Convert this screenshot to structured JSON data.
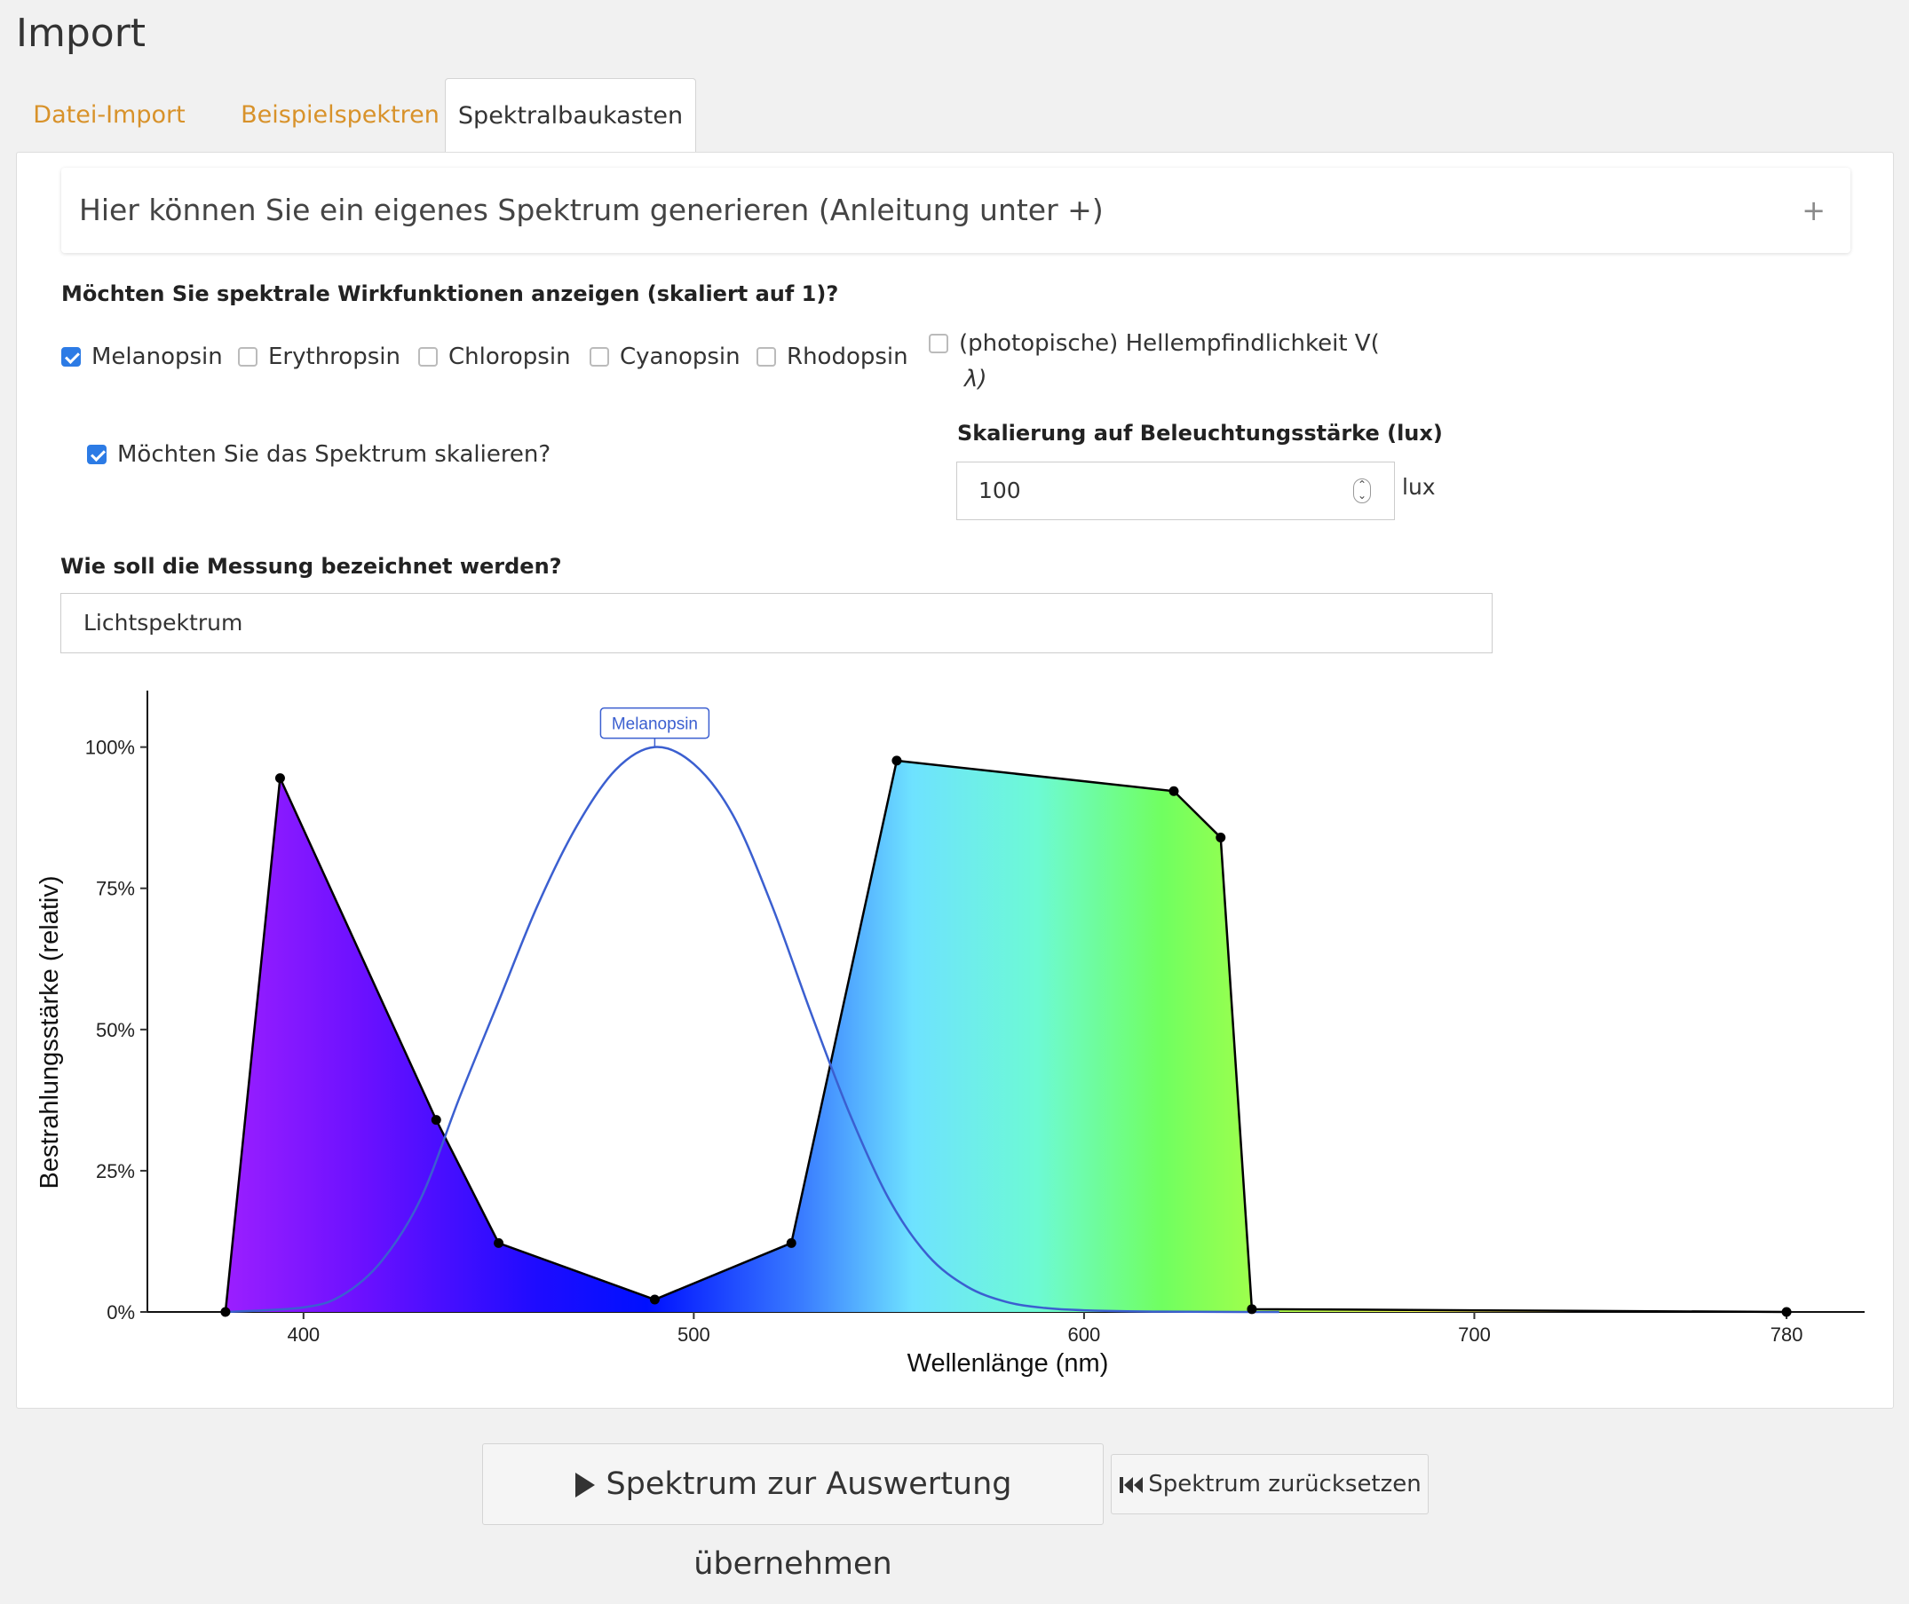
{
  "page": {
    "title": "Import"
  },
  "tabs": [
    {
      "label": "Datei-Import",
      "active": false
    },
    {
      "label": "Beispielspektren",
      "active": false
    },
    {
      "label": "Spektralbaukasten",
      "active": true
    }
  ],
  "collapse": {
    "title": "Hier können Sie ein eigenes Spektrum generieren (Anleitung unter +)",
    "icon": "plus-icon"
  },
  "wirk": {
    "question": "Möchten Sie spektrale Wirkfunktionen anzeigen (skaliert auf 1)?",
    "options": [
      {
        "label": "Melanopsin",
        "checked": true
      },
      {
        "label": "Erythropsin",
        "checked": false
      },
      {
        "label": "Chloropsin",
        "checked": false
      },
      {
        "label": "Cyanopsin",
        "checked": false
      },
      {
        "label": "Rhodopsin",
        "checked": false
      },
      {
        "label_line1": "(photopische) Hellempfindlichkeit V(",
        "label_line2": "λ)",
        "checked": false
      }
    ]
  },
  "scale": {
    "checkbox_label": "Möchten Sie das Spektrum skalieren?",
    "checked": true,
    "field_label": "Skalierung auf Beleuchtungsstärke (lux)",
    "value": "100",
    "unit": "lux"
  },
  "measurement": {
    "question": "Wie soll die Messung bezeichnet werden?",
    "value": "Lichtspektrum"
  },
  "chart_data": {
    "type": "area",
    "xlabel": "Wellenlänge (nm)",
    "ylabel": "Bestrahlungsstärke (relativ)",
    "xlim": [
      360,
      800
    ],
    "ylim": [
      0,
      1.1
    ],
    "x_ticks": [
      400,
      500,
      600,
      700,
      780
    ],
    "y_ticks": [
      "0%",
      "25%",
      "50%",
      "75%",
      "100%"
    ],
    "y_tick_values": [
      0,
      0.25,
      0.5,
      0.75,
      1.0
    ],
    "grid": false,
    "series": [
      {
        "points": [
          [
            380,
            0.0
          ],
          [
            394,
            0.945
          ],
          [
            434,
            0.34
          ],
          [
            450,
            0.122
          ],
          [
            490,
            0.022
          ],
          [
            525,
            0.122
          ],
          [
            552,
            0.976
          ],
          [
            623,
            0.922
          ],
          [
            635,
            0.84
          ],
          [
            643,
            0.005
          ],
          [
            780,
            0.0
          ]
        ]
      },
      {
        "name": "Melanopsin",
        "color": "#3b5fd0",
        "points": [
          [
            380,
            0.0
          ],
          [
            400,
            0.008
          ],
          [
            410,
            0.03
          ],
          [
            420,
            0.09
          ],
          [
            430,
            0.2
          ],
          [
            440,
            0.38
          ],
          [
            450,
            0.55
          ],
          [
            460,
            0.72
          ],
          [
            470,
            0.86
          ],
          [
            480,
            0.96
          ],
          [
            490,
            1.0
          ],
          [
            500,
            0.97
          ],
          [
            510,
            0.88
          ],
          [
            520,
            0.72
          ],
          [
            530,
            0.53
          ],
          [
            540,
            0.35
          ],
          [
            550,
            0.2
          ],
          [
            560,
            0.1
          ],
          [
            570,
            0.045
          ],
          [
            580,
            0.018
          ],
          [
            590,
            0.007
          ],
          [
            600,
            0.003
          ],
          [
            620,
            0.0005
          ],
          [
            650,
            0.0
          ]
        ]
      }
    ]
  },
  "actions": {
    "apply": "Spektrum zur Auswertung übernehmen",
    "reset": "Spektrum zurücksetzen"
  }
}
